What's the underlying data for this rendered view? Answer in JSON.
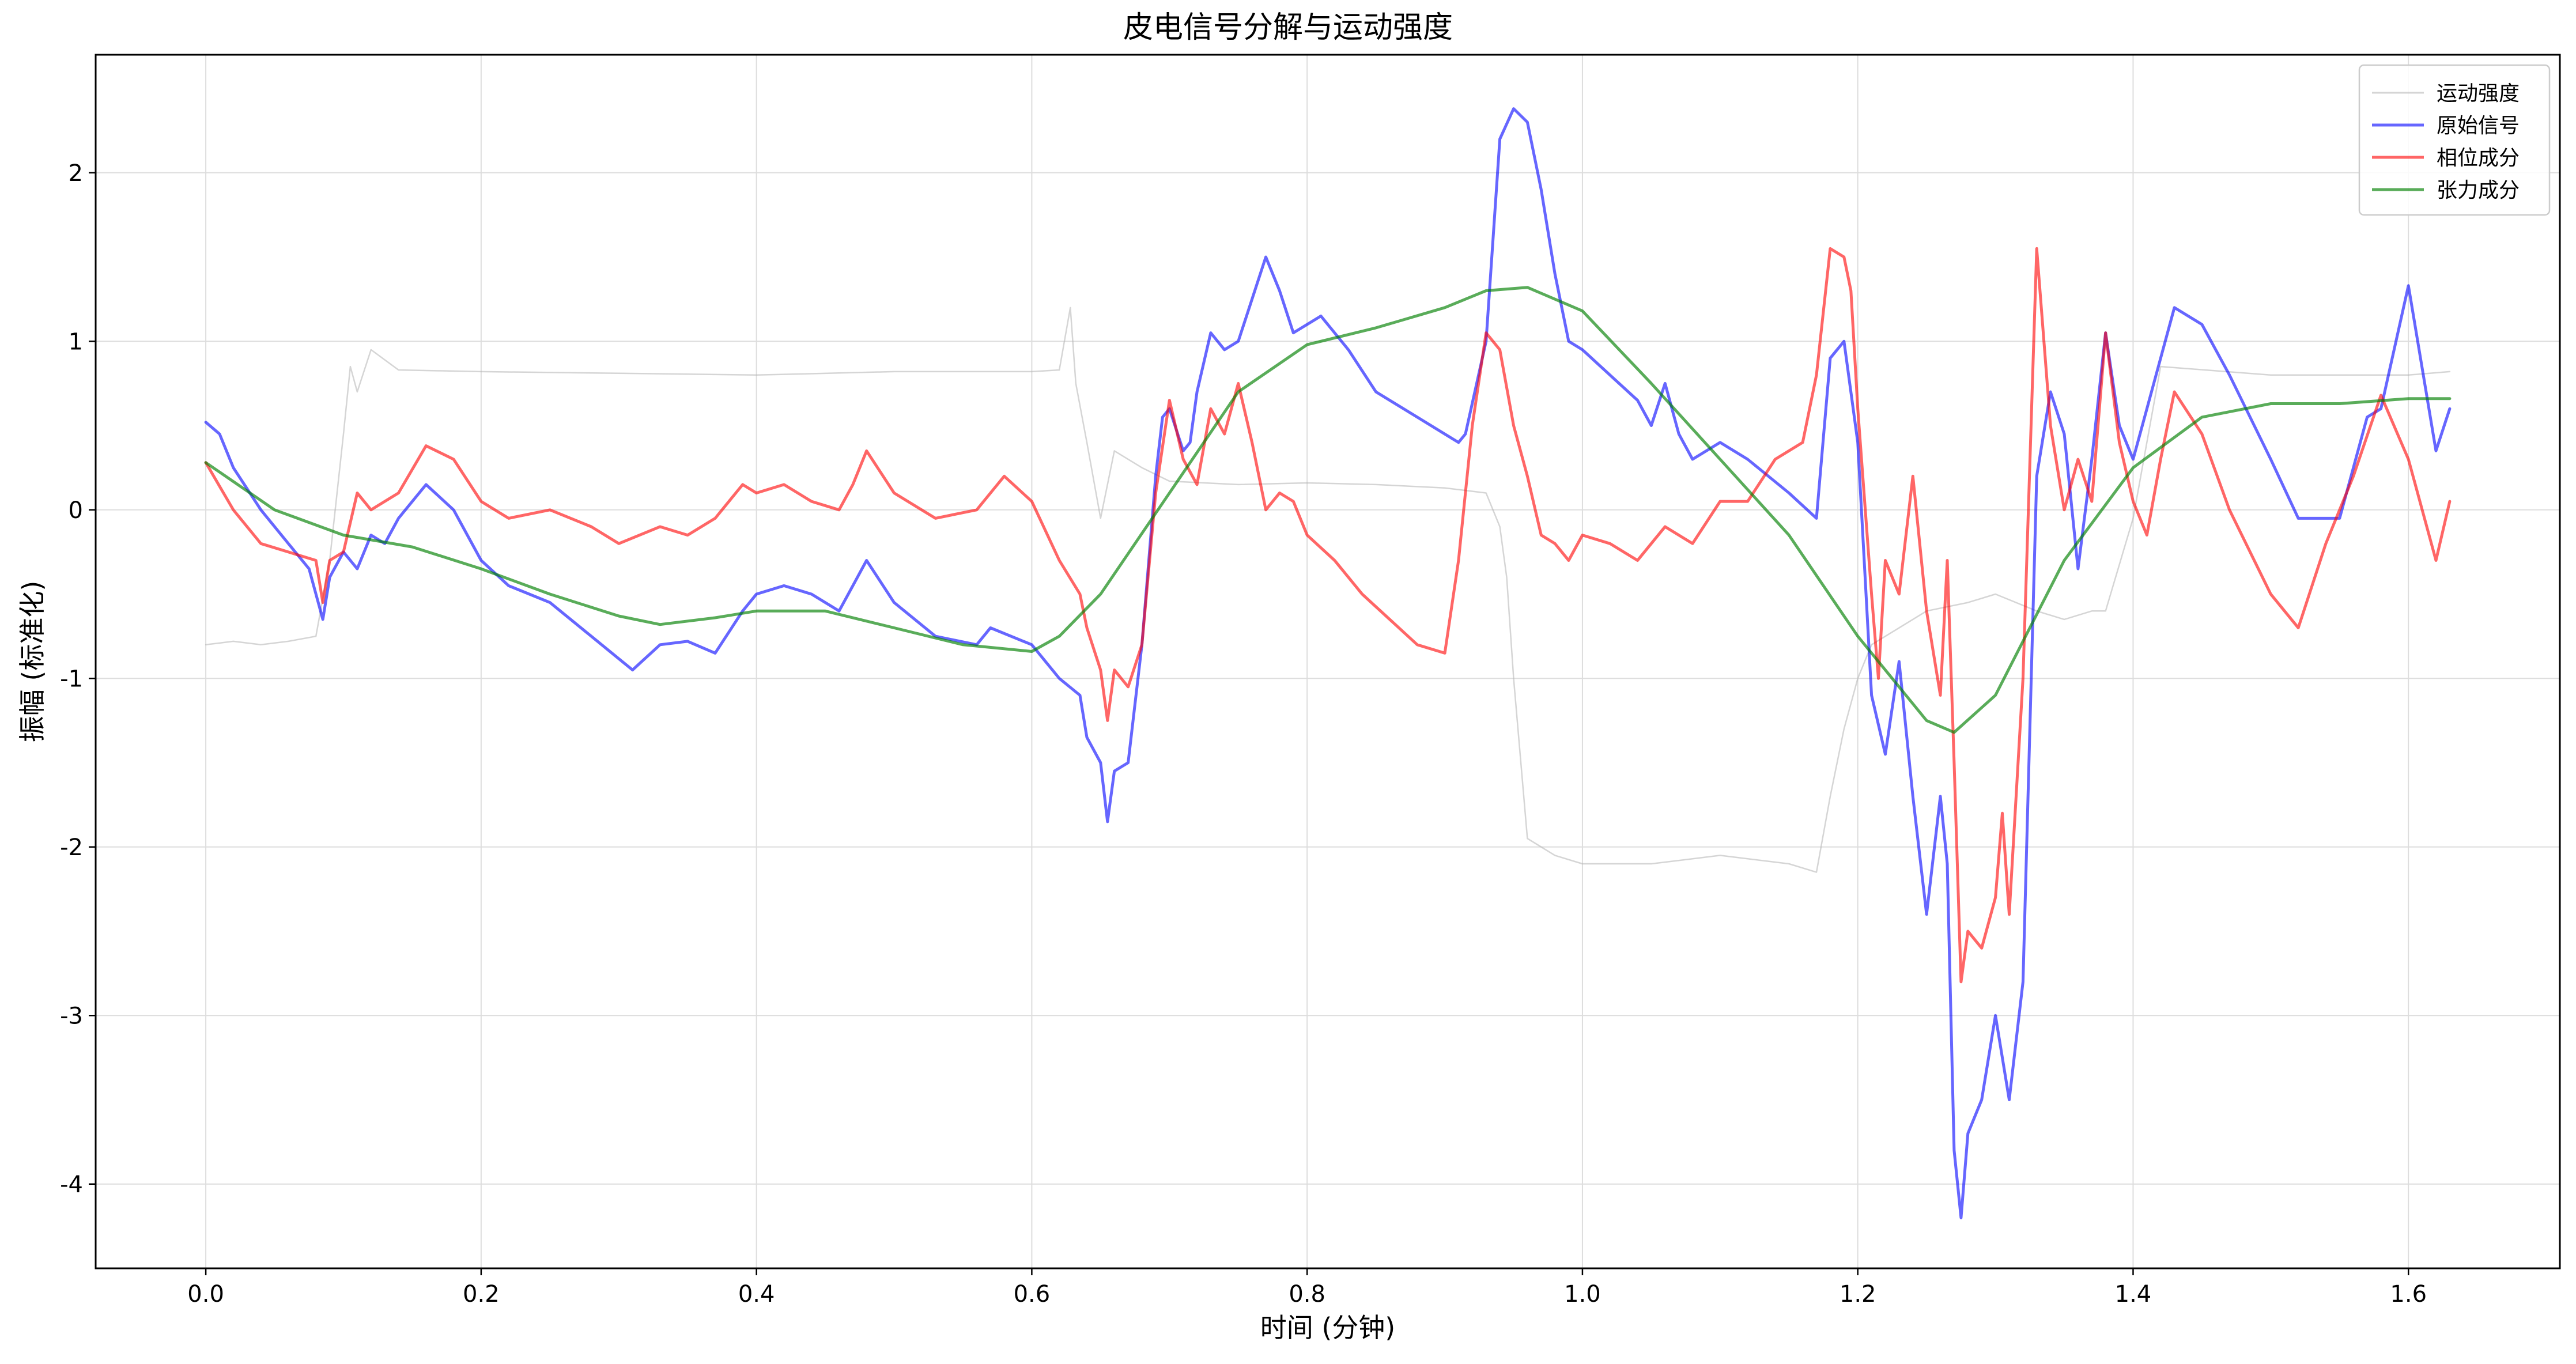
{
  "chart_data": {
    "type": "line",
    "title": "皮电信号分解与运动强度",
    "xlabel": "时间 (分钟)",
    "ylabel": "振幅 (标准化)",
    "xlim": [
      -0.08,
      1.71
    ],
    "ylim": [
      -4.5,
      2.7
    ],
    "xticks": [
      0.0,
      0.2,
      0.4,
      0.6,
      0.8,
      1.0,
      1.2,
      1.4,
      1.6
    ],
    "xtick_labels": [
      "0.0",
      "0.2",
      "0.4",
      "0.6",
      "0.8",
      "1.0",
      "1.2",
      "1.4",
      "1.6"
    ],
    "yticks": [
      -4,
      -3,
      -2,
      -1,
      0,
      1,
      2
    ],
    "ytick_labels": [
      "-4",
      "-3",
      "-2",
      "-1",
      "0",
      "1",
      "2"
    ],
    "grid": true,
    "legend_position": "top-right",
    "series": [
      {
        "name": "运动强度",
        "color": "#b3b3b3",
        "opacity": 0.55,
        "x": [
          0.0,
          0.02,
          0.04,
          0.06,
          0.08,
          0.09,
          0.1,
          0.105,
          0.11,
          0.12,
          0.14,
          0.2,
          0.3,
          0.4,
          0.5,
          0.6,
          0.62,
          0.628,
          0.632,
          0.64,
          0.65,
          0.66,
          0.68,
          0.7,
          0.75,
          0.8,
          0.85,
          0.9,
          0.93,
          0.94,
          0.945,
          0.95,
          0.96,
          0.98,
          1.0,
          1.05,
          1.1,
          1.15,
          1.17,
          1.18,
          1.19,
          1.2,
          1.21,
          1.25,
          1.28,
          1.3,
          1.33,
          1.35,
          1.37,
          1.38,
          1.4,
          1.42,
          1.5,
          1.6,
          1.63
        ],
        "y": [
          -0.8,
          -0.78,
          -0.8,
          -0.78,
          -0.75,
          -0.3,
          0.45,
          0.85,
          0.7,
          0.95,
          0.83,
          0.82,
          0.81,
          0.8,
          0.82,
          0.82,
          0.83,
          1.2,
          0.75,
          0.4,
          -0.05,
          0.35,
          0.25,
          0.17,
          0.15,
          0.16,
          0.15,
          0.13,
          0.1,
          -0.1,
          -0.4,
          -1.0,
          -1.95,
          -2.05,
          -2.1,
          -2.1,
          -2.05,
          -2.1,
          -2.15,
          -1.7,
          -1.3,
          -1.0,
          -0.8,
          -0.6,
          -0.55,
          -0.5,
          -0.6,
          -0.65,
          -0.6,
          -0.6,
          -0.05,
          0.85,
          0.8,
          0.8,
          0.82
        ]
      },
      {
        "name": "原始信号",
        "color": "#0000ff",
        "opacity": 0.6,
        "x": [
          0.0,
          0.01,
          0.02,
          0.04,
          0.06,
          0.075,
          0.085,
          0.09,
          0.1,
          0.11,
          0.12,
          0.13,
          0.14,
          0.16,
          0.18,
          0.2,
          0.22,
          0.25,
          0.28,
          0.31,
          0.33,
          0.35,
          0.37,
          0.39,
          0.4,
          0.42,
          0.44,
          0.46,
          0.47,
          0.48,
          0.5,
          0.53,
          0.56,
          0.57,
          0.6,
          0.62,
          0.635,
          0.64,
          0.65,
          0.655,
          0.66,
          0.67,
          0.68,
          0.69,
          0.695,
          0.7,
          0.71,
          0.715,
          0.72,
          0.73,
          0.74,
          0.75,
          0.77,
          0.78,
          0.79,
          0.8,
          0.81,
          0.83,
          0.85,
          0.88,
          0.91,
          0.915,
          0.93,
          0.94,
          0.95,
          0.96,
          0.97,
          0.98,
          0.99,
          1.0,
          1.02,
          1.04,
          1.05,
          1.06,
          1.07,
          1.08,
          1.1,
          1.12,
          1.15,
          1.17,
          1.18,
          1.19,
          1.2,
          1.21,
          1.22,
          1.23,
          1.24,
          1.25,
          1.26,
          1.265,
          1.27,
          1.275,
          1.28,
          1.29,
          1.3,
          1.31,
          1.32,
          1.33,
          1.34,
          1.35,
          1.36,
          1.37,
          1.38,
          1.39,
          1.4,
          1.41,
          1.43,
          1.45,
          1.47,
          1.5,
          1.52,
          1.55,
          1.57,
          1.58,
          1.6,
          1.62,
          1.63
        ],
        "y": [
          0.52,
          0.45,
          0.25,
          0.0,
          -0.2,
          -0.35,
          -0.65,
          -0.4,
          -0.25,
          -0.35,
          -0.15,
          -0.2,
          -0.05,
          0.15,
          0.0,
          -0.3,
          -0.45,
          -0.55,
          -0.75,
          -0.95,
          -0.8,
          -0.78,
          -0.85,
          -0.6,
          -0.5,
          -0.45,
          -0.5,
          -0.6,
          -0.45,
          -0.3,
          -0.55,
          -0.75,
          -0.8,
          -0.7,
          -0.8,
          -1.0,
          -1.1,
          -1.35,
          -1.5,
          -1.85,
          -1.55,
          -1.5,
          -0.8,
          0.2,
          0.55,
          0.6,
          0.35,
          0.4,
          0.7,
          1.05,
          0.95,
          1.0,
          1.5,
          1.3,
          1.05,
          1.1,
          1.15,
          0.95,
          0.7,
          0.55,
          0.4,
          0.45,
          1.0,
          2.2,
          2.38,
          2.3,
          1.9,
          1.4,
          1.0,
          0.95,
          0.8,
          0.65,
          0.5,
          0.75,
          0.45,
          0.3,
          0.4,
          0.3,
          0.1,
          -0.05,
          0.9,
          1.0,
          0.4,
          -1.1,
          -1.45,
          -0.9,
          -1.7,
          -2.4,
          -1.7,
          -2.1,
          -3.8,
          -4.2,
          -3.7,
          -3.5,
          -3.0,
          -3.5,
          -2.8,
          0.2,
          0.7,
          0.45,
          -0.35,
          0.3,
          1.05,
          0.5,
          0.3,
          0.6,
          1.2,
          1.1,
          0.8,
          0.3,
          -0.05,
          -0.05,
          0.55,
          0.6,
          1.33,
          0.35,
          0.6
        ]
      },
      {
        "name": "相位成分",
        "color": "#ff0000",
        "opacity": 0.6,
        "x": [
          0.0,
          0.02,
          0.04,
          0.06,
          0.08,
          0.085,
          0.09,
          0.1,
          0.11,
          0.12,
          0.14,
          0.16,
          0.18,
          0.2,
          0.22,
          0.25,
          0.28,
          0.3,
          0.33,
          0.35,
          0.37,
          0.39,
          0.4,
          0.42,
          0.44,
          0.46,
          0.47,
          0.48,
          0.5,
          0.53,
          0.56,
          0.58,
          0.6,
          0.62,
          0.635,
          0.64,
          0.65,
          0.655,
          0.66,
          0.67,
          0.68,
          0.69,
          0.7,
          0.71,
          0.72,
          0.73,
          0.74,
          0.75,
          0.76,
          0.77,
          0.78,
          0.79,
          0.8,
          0.82,
          0.84,
          0.86,
          0.88,
          0.9,
          0.91,
          0.92,
          0.93,
          0.94,
          0.95,
          0.96,
          0.97,
          0.98,
          0.99,
          1.0,
          1.02,
          1.04,
          1.06,
          1.08,
          1.1,
          1.12,
          1.14,
          1.16,
          1.17,
          1.18,
          1.19,
          1.195,
          1.2,
          1.21,
          1.215,
          1.22,
          1.23,
          1.24,
          1.25,
          1.26,
          1.265,
          1.27,
          1.275,
          1.28,
          1.29,
          1.3,
          1.305,
          1.31,
          1.32,
          1.33,
          1.34,
          1.35,
          1.36,
          1.37,
          1.38,
          1.39,
          1.4,
          1.41,
          1.42,
          1.43,
          1.45,
          1.47,
          1.5,
          1.52,
          1.54,
          1.56,
          1.58,
          1.6,
          1.62,
          1.63
        ],
        "y": [
          0.28,
          0.0,
          -0.2,
          -0.25,
          -0.3,
          -0.55,
          -0.3,
          -0.25,
          0.1,
          0.0,
          0.1,
          0.38,
          0.3,
          0.05,
          -0.05,
          0.0,
          -0.1,
          -0.2,
          -0.1,
          -0.15,
          -0.05,
          0.15,
          0.1,
          0.15,
          0.05,
          0.0,
          0.15,
          0.35,
          0.1,
          -0.05,
          0.0,
          0.2,
          0.05,
          -0.3,
          -0.5,
          -0.7,
          -0.95,
          -1.25,
          -0.95,
          -1.05,
          -0.8,
          0.1,
          0.65,
          0.3,
          0.15,
          0.6,
          0.45,
          0.75,
          0.4,
          0.0,
          0.1,
          0.05,
          -0.15,
          -0.3,
          -0.5,
          -0.65,
          -0.8,
          -0.85,
          -0.3,
          0.5,
          1.05,
          0.95,
          0.5,
          0.2,
          -0.15,
          -0.2,
          -0.3,
          -0.15,
          -0.2,
          -0.3,
          -0.1,
          -0.2,
          0.05,
          0.05,
          0.3,
          0.4,
          0.8,
          1.55,
          1.5,
          1.3,
          0.6,
          -0.5,
          -1.0,
          -0.3,
          -0.5,
          0.2,
          -0.6,
          -1.1,
          -0.3,
          -1.5,
          -2.8,
          -2.5,
          -2.6,
          -2.3,
          -1.8,
          -2.4,
          -1.0,
          1.55,
          0.5,
          0.0,
          0.3,
          0.05,
          1.05,
          0.4,
          0.05,
          -0.15,
          0.3,
          0.7,
          0.45,
          0.0,
          -0.5,
          -0.7,
          -0.2,
          0.2,
          0.68,
          0.3,
          -0.3,
          0.05
        ]
      },
      {
        "name": "张力成分",
        "color": "#008000",
        "opacity": 0.65,
        "x": [
          0.0,
          0.05,
          0.1,
          0.15,
          0.2,
          0.25,
          0.3,
          0.33,
          0.37,
          0.4,
          0.45,
          0.5,
          0.55,
          0.6,
          0.62,
          0.65,
          0.7,
          0.75,
          0.8,
          0.85,
          0.9,
          0.93,
          0.96,
          1.0,
          1.05,
          1.1,
          1.15,
          1.2,
          1.25,
          1.27,
          1.3,
          1.35,
          1.4,
          1.45,
          1.5,
          1.55,
          1.6,
          1.63
        ],
        "y": [
          0.28,
          0.0,
          -0.15,
          -0.22,
          -0.35,
          -0.5,
          -0.63,
          -0.68,
          -0.64,
          -0.6,
          -0.6,
          -0.7,
          -0.8,
          -0.84,
          -0.75,
          -0.5,
          0.1,
          0.7,
          0.98,
          1.08,
          1.2,
          1.3,
          1.32,
          1.18,
          0.75,
          0.3,
          -0.15,
          -0.75,
          -1.25,
          -1.32,
          -1.1,
          -0.3,
          0.25,
          0.55,
          0.63,
          0.63,
          0.66,
          0.66
        ]
      }
    ]
  }
}
